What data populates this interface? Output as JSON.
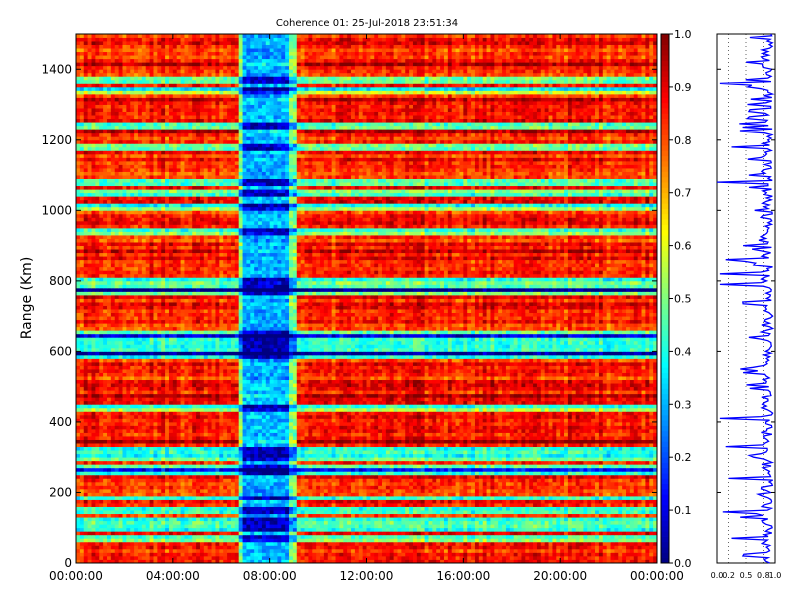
{
  "chart_data": [
    {
      "type": "heatmap",
      "title": "Coherence 01: 25-Jul-2018 23:51:34",
      "ylabel": "Range (Km)",
      "xlabel": "",
      "x_ticks": [
        "00:00:00",
        "04:00:00",
        "08:00:00",
        "12:00:00",
        "16:00:00",
        "20:00:00",
        "00:00:00"
      ],
      "xlim_hours": [
        0,
        24
      ],
      "y_ticks": [
        0,
        200,
        400,
        600,
        800,
        1000,
        1200,
        1400
      ],
      "ylim": [
        0,
        1500
      ],
      "colorscale": "jet",
      "clim": [
        0.0,
        1.0
      ],
      "colorbar_ticks": [
        "0.0",
        "0.1",
        "0.2",
        "0.3",
        "0.4",
        "0.5",
        "0.6",
        "0.7",
        "0.8",
        "0.9",
        "1.0"
      ],
      "values_description_hours": {
        "low_coherence_band_hours": [
          6.7,
          9.1
        ],
        "background_level": 0.85,
        "band_level": 0.3,
        "low_coherence_range_rows_km": [
          70,
          100,
          120,
          150,
          185,
          260,
          270,
          300,
          320,
          440,
          590,
          600,
          620,
          640,
          650,
          770,
          780,
          800,
          940,
          1010,
          1050,
          1080,
          1180,
          1240,
          1340,
          1370
        ]
      }
    },
    {
      "type": "line",
      "xlabel": "",
      "x_ticks": [
        "0.0",
        "0.2",
        "0.5",
        "0.8",
        "1.0"
      ],
      "xlim": [
        0,
        1
      ],
      "ylim": [
        0,
        1500
      ],
      "series_color": "#0000ff",
      "dips": [
        {
          "range_km": 1360,
          "value": 0.05
        },
        {
          "range_km": 1280,
          "value": 0.55
        },
        {
          "range_km": 1180,
          "value": 0.25
        },
        {
          "range_km": 1100,
          "value": 0.55
        },
        {
          "range_km": 1080,
          "value": 0.0
        },
        {
          "range_km": 1000,
          "value": 0.65
        },
        {
          "range_km": 900,
          "value": 0.45
        },
        {
          "range_km": 860,
          "value": 0.15
        },
        {
          "range_km": 820,
          "value": 0.05
        },
        {
          "range_km": 790,
          "value": 0.05
        },
        {
          "range_km": 640,
          "value": 0.55
        },
        {
          "range_km": 540,
          "value": 0.45
        },
        {
          "range_km": 410,
          "value": 0.05
        },
        {
          "range_km": 330,
          "value": 0.15
        },
        {
          "range_km": 240,
          "value": 0.2
        },
        {
          "range_km": 145,
          "value": 0.1
        },
        {
          "range_km": 130,
          "value": 0.4
        },
        {
          "range_km": 70,
          "value": 0.25
        }
      ]
    }
  ]
}
